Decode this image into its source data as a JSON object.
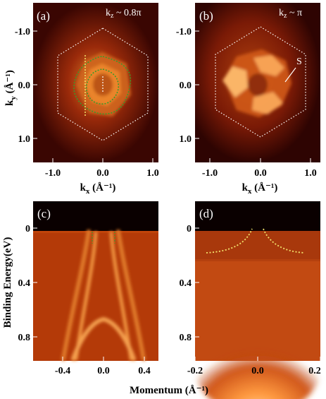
{
  "figure": {
    "panels": [
      {
        "id": "a",
        "label": "(a)",
        "kz_label": "k₂ ~ 0.8π"
      },
      {
        "id": "b",
        "label": "(b)",
        "kz_label": "k₂ ~ π",
        "feature_label": "S"
      },
      {
        "id": "c",
        "label": "(c)"
      },
      {
        "id": "d",
        "label": "(d)"
      }
    ],
    "top_axes": {
      "ky_label_main": "k",
      "ky_label_sub": "y",
      "ky_label_unit": " (Å⁻¹)",
      "kx_label_main": "k",
      "kx_label_sub": "x",
      "kx_label_unit": " (Å⁻¹)",
      "y_ticks": [
        "-1.0",
        "0.0",
        "1.0"
      ],
      "x_ticks": [
        "-1.0",
        "0.0",
        "1.0"
      ]
    },
    "bottom_axes": {
      "ylabel": "Binding Energy(eV)",
      "y_ticks": [
        "0",
        "0.4",
        "0.8"
      ],
      "c_x_ticks": [
        "-0.4",
        "0.0",
        "0.4"
      ],
      "d_x_ticks": [
        "-0.2",
        "0.0",
        "0.2"
      ],
      "xlabel": "Momentum (Å⁻¹)"
    },
    "colors": {
      "dark": "#1a0000",
      "mid": "#c0440a",
      "bright": "#ffe8b0",
      "overlay_green": "#3c9a2a",
      "overlay_yellow": "#f2e16a",
      "hexagon": "#ffffff"
    }
  }
}
